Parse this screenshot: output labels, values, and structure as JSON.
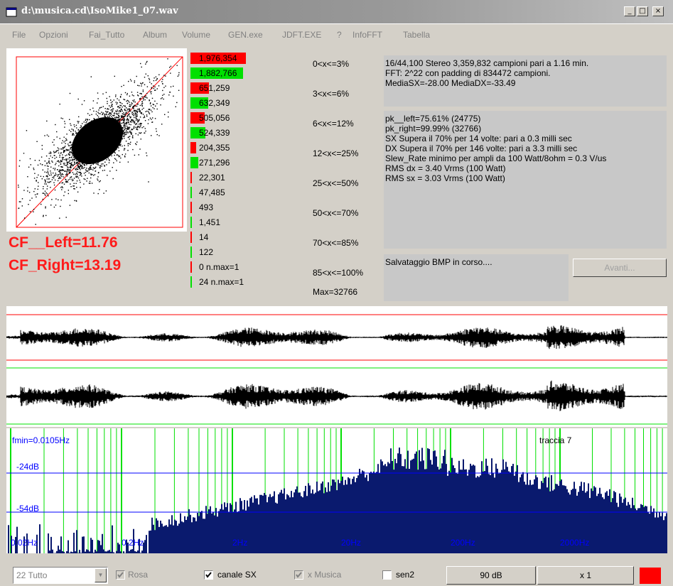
{
  "window": {
    "title": "d:\\musica.cd\\IsoMike1_07.wav",
    "min_label": "_",
    "max_label": "□",
    "close_label": "×"
  },
  "menu": [
    "File",
    "Opzioni",
    "Fai_Tutto",
    "Album",
    "Volume",
    "GEN.exe",
    "JDFT.EXE",
    "?",
    "InfoFFT",
    "Tabella"
  ],
  "crest": {
    "left": "CF__Left=11.76",
    "right": "CF_Right=13.19"
  },
  "histogram": {
    "colors": {
      "left": "#ff0000",
      "right": "#00e000"
    },
    "rows": [
      {
        "value": "1,976,354",
        "channel": "left",
        "level": 1.0
      },
      {
        "value": "1,882,766",
        "channel": "right",
        "level": 0.95
      },
      {
        "value": "651,259",
        "channel": "left",
        "level": 0.33
      },
      {
        "value": "632,349",
        "channel": "right",
        "level": 0.32
      },
      {
        "value": "505,056",
        "channel": "left",
        "level": 0.26
      },
      {
        "value": "524,339",
        "channel": "right",
        "level": 0.27
      },
      {
        "value": "204,355",
        "channel": "left",
        "level": 0.1
      },
      {
        "value": "271,296",
        "channel": "right",
        "level": 0.14
      },
      {
        "value": "22,301",
        "channel": "left",
        "level": 0.02
      },
      {
        "value": "47,485",
        "channel": "right",
        "level": 0.025
      },
      {
        "value": "493",
        "channel": "left",
        "level": 0.005
      },
      {
        "value": "1,451",
        "channel": "right",
        "level": 0.005
      },
      {
        "value": "14",
        "channel": "left",
        "level": 0.005
      },
      {
        "value": "122",
        "channel": "right",
        "level": 0.005
      },
      {
        "value": "0 n.max=1",
        "channel": "left",
        "level": 0.0
      },
      {
        "value": "24 n.max=1",
        "channel": "right",
        "level": 0.005
      }
    ],
    "ranges": [
      "0<x<=3%",
      "3<x<=6%",
      "6<x<=12%",
      "12<x<=25%",
      "25<x<=50%",
      "50<x<=70%",
      "70<x<=85%",
      "85<x<=100%",
      "Max=32766"
    ]
  },
  "info": {
    "file": [
      "16/44,100 Stereo 3,359,832 campioni pari a 1.16 min.",
      "FFT: 2^22 con padding di 834472 campioni.",
      "MediaSX=-28.00  MediaDX=-33.49"
    ],
    "peaks": [
      "pk__left=75.61% (24775)",
      "pk_right=99.99% (32766)",
      "SX Supera il 70% per 14 volte: pari a 0.3 milli sec",
      "DX Supera il 70% per 146 volte: pari a 3.3 milli sec",
      "Slew_Rate minimo per ampli da 100 Watt/8ohm = 0.3 V/us",
      "RMS dx = 3.40 Vrms (100 Watt)",
      "RMS sx = 3.03 Vrms (100 Watt)"
    ],
    "status": "Salvataggio BMP in corso....",
    "avanti_label": "Avanti..."
  },
  "spectrum": {
    "fmin_label": "fmin=0.0105Hz",
    "track_label": "traccia 7",
    "db_labels": [
      "-24dB",
      "-54dB"
    ],
    "freq_labels": [
      "0.02Hz",
      "0.2Hz",
      "2Hz",
      "20Hz",
      "200Hz",
      "2000Hz"
    ],
    "colors": {
      "fill": "#0a1a6e",
      "grid_green": "#00e000",
      "grid_blue": "#0000ff"
    }
  },
  "waveform": {
    "colors": {
      "trace": "#000000",
      "left_limit": "#ff0000",
      "right_limit": "#00e000"
    }
  },
  "controls": {
    "combo_value": "22 Tutto",
    "rosa": {
      "label": "Rosa",
      "checked": true,
      "enabled": false
    },
    "canale_sx": {
      "label": "canale SX",
      "checked": true,
      "enabled": true
    },
    "x_musica": {
      "label": "x Musica",
      "checked": true,
      "enabled": false
    },
    "sen2": {
      "label": "sen2",
      "checked": false,
      "enabled": true
    },
    "db_button": "90 dB",
    "x_button": "x 1",
    "swatch_color": "#ff0000"
  }
}
